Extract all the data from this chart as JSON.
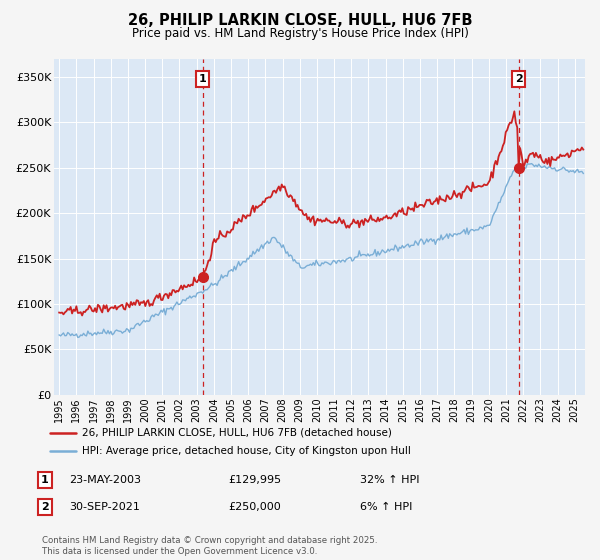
{
  "title": "26, PHILIP LARKIN CLOSE, HULL, HU6 7FB",
  "subtitle": "Price paid vs. HM Land Registry's House Price Index (HPI)",
  "bg_color": "#f5f5f5",
  "plot_bg_color": "#dce8f5",
  "grid_color": "#ffffff",
  "red_line_color": "#cc2222",
  "blue_line_color": "#7aaed6",
  "marker1_price": 129995,
  "marker2_price": 250000,
  "legend_line1": "26, PHILIP LARKIN CLOSE, HULL, HU6 7FB (detached house)",
  "legend_line2": "HPI: Average price, detached house, City of Kingston upon Hull",
  "ann1_date": "23-MAY-2003",
  "ann1_price": "£129,995",
  "ann1_hpi": "32% ↑ HPI",
  "ann2_date": "30-SEP-2021",
  "ann2_price": "£250,000",
  "ann2_hpi": "6% ↑ HPI",
  "footer": "Contains HM Land Registry data © Crown copyright and database right 2025.\nThis data is licensed under the Open Government Licence v3.0.",
  "ylim": [
    0,
    370000
  ],
  "yticks": [
    0,
    50000,
    100000,
    150000,
    200000,
    250000,
    300000,
    350000
  ],
  "ytick_labels": [
    "£0",
    "£50K",
    "£100K",
    "£150K",
    "£200K",
    "£250K",
    "£300K",
    "£350K"
  ],
  "marker1_year": 2003.38,
  "marker2_year": 2021.75,
  "xmin": 1994.7,
  "xmax": 2025.6
}
